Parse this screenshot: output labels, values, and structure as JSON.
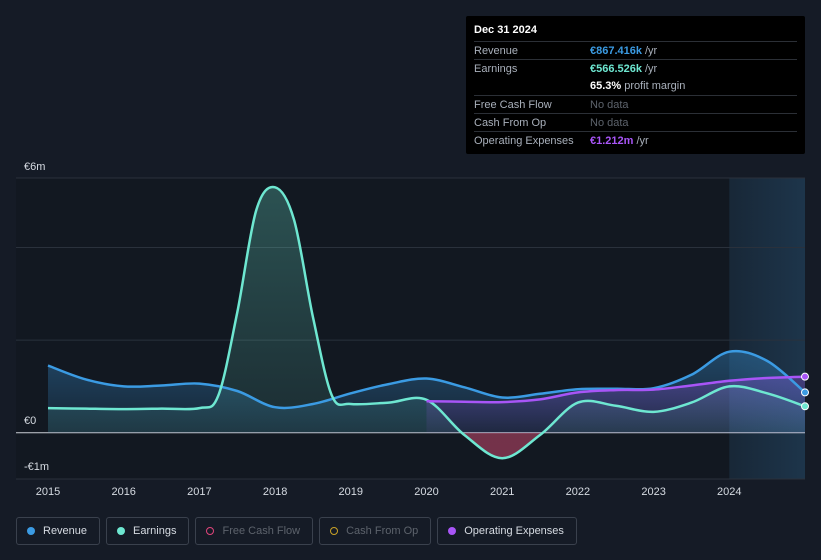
{
  "tooltip": {
    "date": "Dec 31 2024",
    "rows": {
      "revenue": {
        "label": "Revenue",
        "value": "€867.416k",
        "suffix": "/yr",
        "color": "#3b9be3"
      },
      "earnings": {
        "label": "Earnings",
        "value": "€566.526k",
        "suffix": "/yr",
        "color": "#6ee7d1"
      },
      "margin": {
        "value": "65.3%",
        "suffix": "profit margin"
      },
      "fcf": {
        "label": "Free Cash Flow",
        "value": "No data"
      },
      "cfo": {
        "label": "Cash From Op",
        "value": "No data"
      },
      "opex": {
        "label": "Operating Expenses",
        "value": "€1.212m",
        "suffix": "/yr",
        "color": "#a855f7"
      }
    }
  },
  "legend": [
    {
      "label": "Revenue",
      "color": "#3b9be3",
      "active": true
    },
    {
      "label": "Earnings",
      "color": "#6ee7d1",
      "active": true
    },
    {
      "label": "Free Cash Flow",
      "color": "#e0457b",
      "active": false
    },
    {
      "label": "Cash From Op",
      "color": "#c9a227",
      "active": false
    },
    {
      "label": "Operating Expenses",
      "color": "#a855f7",
      "active": true
    }
  ],
  "chart_data": {
    "type": "area",
    "y_tick_labels": [
      "€6m",
      "€0",
      "-€1m"
    ],
    "ylim": [
      -1,
      5.5
    ],
    "x_ticks": [
      2015,
      2016,
      2017,
      2018,
      2019,
      2020,
      2021,
      2022,
      2023,
      2024
    ],
    "xlim": [
      2015,
      2025
    ],
    "highlight_from": 2024,
    "series": [
      {
        "name": "Revenue",
        "color": "#3b9be3",
        "x": [
          2015,
          2015.5,
          2016,
          2016.5,
          2017,
          2017.5,
          2018,
          2018.5,
          2019,
          2019.5,
          2020,
          2020.5,
          2021,
          2021.5,
          2022,
          2022.5,
          2023,
          2023.5,
          2024,
          2024.5,
          2025
        ],
        "y": [
          1.45,
          1.15,
          1.0,
          1.02,
          1.06,
          0.9,
          0.55,
          0.62,
          0.85,
          1.05,
          1.17,
          0.98,
          0.76,
          0.84,
          0.94,
          0.95,
          0.96,
          1.25,
          1.75,
          1.55,
          0.87
        ]
      },
      {
        "name": "Earnings",
        "color": "#6ee7d1",
        "x": [
          2015,
          2015.5,
          2016,
          2016.5,
          2017,
          2017.25,
          2017.5,
          2017.75,
          2018,
          2018.25,
          2018.5,
          2018.75,
          2019,
          2019.5,
          2020,
          2020.5,
          2021,
          2021.5,
          2022,
          2022.5,
          2023,
          2023.5,
          2024,
          2024.5,
          2025
        ],
        "y": [
          0.53,
          0.52,
          0.51,
          0.52,
          0.53,
          0.8,
          2.6,
          4.8,
          5.3,
          4.6,
          2.5,
          0.8,
          0.62,
          0.65,
          0.71,
          -0.05,
          -0.55,
          -0.05,
          0.65,
          0.58,
          0.45,
          0.65,
          1.0,
          0.85,
          0.57
        ]
      },
      {
        "name": "Operating Expenses",
        "color": "#a855f7",
        "x": [
          2020,
          2020.5,
          2021,
          2021.5,
          2022,
          2022.5,
          2023,
          2023.5,
          2024,
          2024.5,
          2025
        ],
        "y": [
          0.68,
          0.67,
          0.66,
          0.72,
          0.87,
          0.92,
          0.93,
          1.02,
          1.12,
          1.18,
          1.21
        ]
      }
    ]
  }
}
